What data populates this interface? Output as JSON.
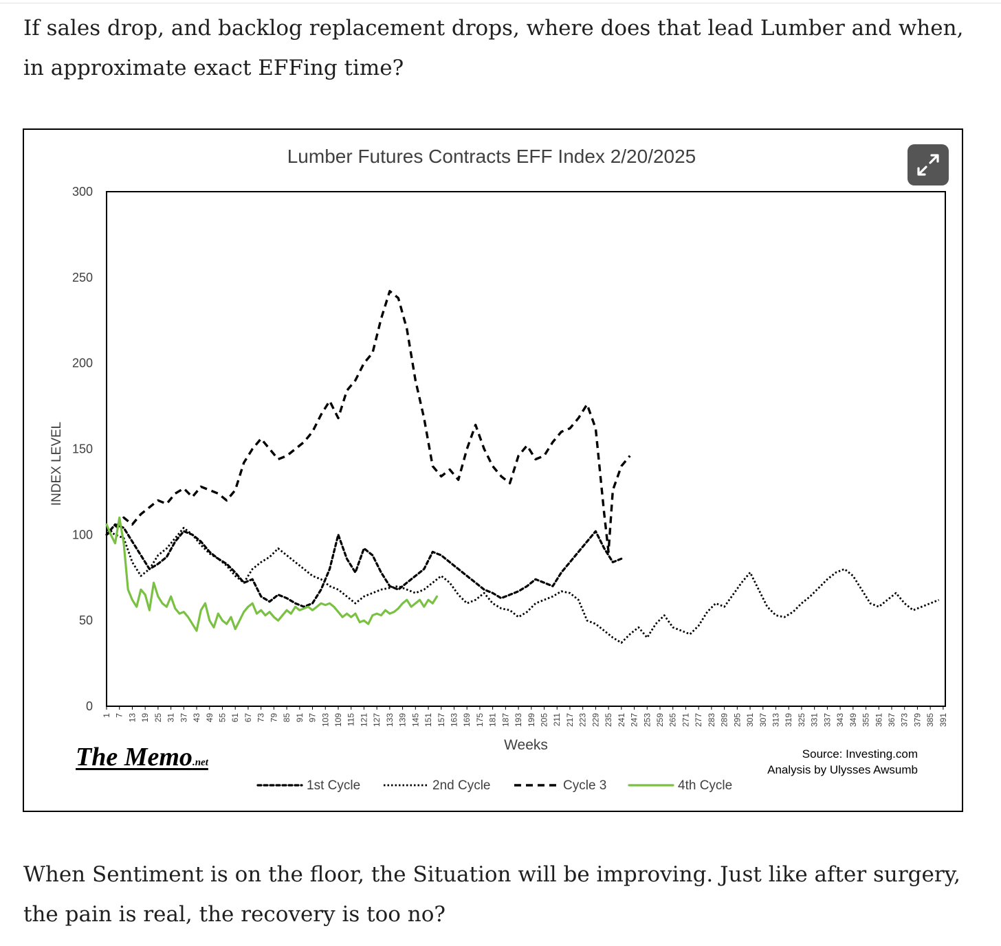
{
  "article": {
    "paragraph1": "If sales drop, and backlog replacement drops, where does that lead Lumber and when, in approximate exact EFFing time?",
    "paragraph2": "When Sentiment is on the floor, the Situation will be improving. Just like after surgery, the pain is real, the recovery is too no?"
  },
  "figure": {
    "logo_main": "The Memo",
    "logo_suffix": ".net",
    "source_line1": "Source: Investing.com",
    "source_line2": "Analysis by Ulysses Awsumb",
    "expand_icon": "expand-arrows-icon"
  },
  "chart_data": {
    "type": "line",
    "title": "Lumber Futures Contracts  EFF Index 2/20/2025",
    "xlabel": "Weeks",
    "ylabel": "INDEX LEVEL",
    "ylim": [
      0,
      300
    ],
    "yticks": [
      0,
      50,
      100,
      150,
      200,
      250,
      300
    ],
    "xlim": [
      1,
      392
    ],
    "xtick_start": 1,
    "xtick_step": 6,
    "xtick_end": 391,
    "grid": false,
    "legend_position": "bottom",
    "series": [
      {
        "name": "1st Cycle",
        "style": "dash-dot-small",
        "color": "#000000",
        "points": [
          [
            1,
            100
          ],
          [
            5,
            106
          ],
          [
            9,
            104
          ],
          [
            13,
            96
          ],
          [
            17,
            88
          ],
          [
            21,
            80
          ],
          [
            25,
            83
          ],
          [
            29,
            87
          ],
          [
            33,
            96
          ],
          [
            37,
            102
          ],
          [
            41,
            100
          ],
          [
            45,
            96
          ],
          [
            49,
            90
          ],
          [
            53,
            86
          ],
          [
            57,
            83
          ],
          [
            61,
            78
          ],
          [
            65,
            72
          ],
          [
            69,
            74
          ],
          [
            73,
            64
          ],
          [
            77,
            61
          ],
          [
            81,
            65
          ],
          [
            85,
            63
          ],
          [
            89,
            60
          ],
          [
            93,
            58
          ],
          [
            97,
            60
          ],
          [
            101,
            68
          ],
          [
            105,
            80
          ],
          [
            109,
            100
          ],
          [
            113,
            86
          ],
          [
            117,
            78
          ],
          [
            121,
            92
          ],
          [
            125,
            88
          ],
          [
            129,
            78
          ],
          [
            133,
            70
          ],
          [
            137,
            68
          ],
          [
            141,
            72
          ],
          [
            145,
            76
          ],
          [
            149,
            80
          ],
          [
            153,
            90
          ],
          [
            157,
            88
          ],
          [
            161,
            84
          ],
          [
            165,
            80
          ],
          [
            169,
            76
          ],
          [
            173,
            72
          ],
          [
            177,
            68
          ],
          [
            181,
            66
          ],
          [
            185,
            63
          ],
          [
            189,
            65
          ],
          [
            193,
            67
          ],
          [
            197,
            70
          ],
          [
            201,
            74
          ],
          [
            205,
            72
          ],
          [
            209,
            70
          ],
          [
            213,
            78
          ],
          [
            217,
            84
          ],
          [
            221,
            90
          ],
          [
            225,
            96
          ],
          [
            229,
            102
          ],
          [
            233,
            92
          ],
          [
            237,
            84
          ],
          [
            241,
            86
          ]
        ]
      },
      {
        "name": "2nd Cycle",
        "style": "dotted",
        "color": "#000000",
        "points": [
          [
            1,
            103
          ],
          [
            5,
            100
          ],
          [
            9,
            98
          ],
          [
            13,
            84
          ],
          [
            17,
            76
          ],
          [
            21,
            80
          ],
          [
            25,
            88
          ],
          [
            29,
            92
          ],
          [
            33,
            98
          ],
          [
            37,
            104
          ],
          [
            41,
            100
          ],
          [
            45,
            94
          ],
          [
            49,
            89
          ],
          [
            53,
            86
          ],
          [
            57,
            82
          ],
          [
            61,
            76
          ],
          [
            65,
            72
          ],
          [
            69,
            80
          ],
          [
            73,
            84
          ],
          [
            77,
            87
          ],
          [
            81,
            92
          ],
          [
            85,
            88
          ],
          [
            89,
            84
          ],
          [
            93,
            80
          ],
          [
            97,
            76
          ],
          [
            101,
            74
          ],
          [
            105,
            70
          ],
          [
            109,
            68
          ],
          [
            113,
            64
          ],
          [
            117,
            60
          ],
          [
            121,
            64
          ],
          [
            125,
            66
          ],
          [
            129,
            68
          ],
          [
            133,
            69
          ],
          [
            137,
            70
          ],
          [
            141,
            68
          ],
          [
            145,
            66
          ],
          [
            149,
            68
          ],
          [
            153,
            72
          ],
          [
            157,
            76
          ],
          [
            161,
            72
          ],
          [
            165,
            65
          ],
          [
            169,
            60
          ],
          [
            173,
            62
          ],
          [
            177,
            66
          ],
          [
            181,
            60
          ],
          [
            185,
            57
          ],
          [
            189,
            56
          ],
          [
            193,
            52
          ],
          [
            197,
            55
          ],
          [
            201,
            60
          ],
          [
            205,
            62
          ],
          [
            209,
            64
          ],
          [
            213,
            67
          ],
          [
            217,
            66
          ],
          [
            221,
            62
          ],
          [
            225,
            50
          ],
          [
            229,
            48
          ],
          [
            233,
            44
          ],
          [
            237,
            40
          ],
          [
            241,
            37
          ],
          [
            245,
            42
          ],
          [
            249,
            46
          ],
          [
            253,
            40
          ],
          [
            257,
            48
          ],
          [
            261,
            53
          ],
          [
            265,
            46
          ],
          [
            269,
            44
          ],
          [
            273,
            42
          ],
          [
            277,
            47
          ],
          [
            281,
            55
          ],
          [
            285,
            60
          ],
          [
            289,
            58
          ],
          [
            293,
            65
          ],
          [
            297,
            72
          ],
          [
            301,
            78
          ],
          [
            305,
            68
          ],
          [
            309,
            58
          ],
          [
            313,
            53
          ],
          [
            317,
            52
          ],
          [
            321,
            55
          ],
          [
            325,
            60
          ],
          [
            329,
            64
          ],
          [
            333,
            69
          ],
          [
            337,
            74
          ],
          [
            341,
            78
          ],
          [
            345,
            80
          ],
          [
            349,
            76
          ],
          [
            353,
            68
          ],
          [
            357,
            60
          ],
          [
            361,
            58
          ],
          [
            365,
            62
          ],
          [
            369,
            66
          ],
          [
            373,
            60
          ],
          [
            377,
            56
          ],
          [
            381,
            58
          ],
          [
            385,
            60
          ],
          [
            389,
            62
          ]
        ]
      },
      {
        "name": "Cycle 3",
        "style": "dashed",
        "color": "#000000",
        "points": [
          [
            1,
            100
          ],
          [
            5,
            104
          ],
          [
            9,
            110
          ],
          [
            13,
            106
          ],
          [
            17,
            112
          ],
          [
            21,
            116
          ],
          [
            25,
            120
          ],
          [
            29,
            118
          ],
          [
            33,
            124
          ],
          [
            37,
            127
          ],
          [
            41,
            122
          ],
          [
            45,
            128
          ],
          [
            49,
            126
          ],
          [
            53,
            124
          ],
          [
            57,
            120
          ],
          [
            61,
            126
          ],
          [
            65,
            142
          ],
          [
            69,
            150
          ],
          [
            73,
            156
          ],
          [
            77,
            150
          ],
          [
            81,
            144
          ],
          [
            85,
            146
          ],
          [
            89,
            150
          ],
          [
            93,
            154
          ],
          [
            97,
            160
          ],
          [
            101,
            170
          ],
          [
            105,
            178
          ],
          [
            109,
            168
          ],
          [
            113,
            184
          ],
          [
            117,
            190
          ],
          [
            121,
            200
          ],
          [
            125,
            206
          ],
          [
            129,
            226
          ],
          [
            133,
            242
          ],
          [
            137,
            238
          ],
          [
            141,
            220
          ],
          [
            145,
            190
          ],
          [
            149,
            168
          ],
          [
            153,
            140
          ],
          [
            157,
            134
          ],
          [
            161,
            138
          ],
          [
            165,
            132
          ],
          [
            169,
            150
          ],
          [
            173,
            164
          ],
          [
            177,
            150
          ],
          [
            181,
            140
          ],
          [
            185,
            134
          ],
          [
            189,
            130
          ],
          [
            193,
            146
          ],
          [
            197,
            152
          ],
          [
            201,
            144
          ],
          [
            205,
            146
          ],
          [
            209,
            154
          ],
          [
            213,
            160
          ],
          [
            217,
            162
          ],
          [
            221,
            168
          ],
          [
            225,
            176
          ],
          [
            229,
            162
          ],
          [
            233,
            112
          ],
          [
            235,
            90
          ],
          [
            237,
            126
          ],
          [
            241,
            140
          ],
          [
            245,
            146
          ]
        ]
      },
      {
        "name": "4th Cycle",
        "style": "solid",
        "color": "#7ac143",
        "points": [
          [
            1,
            106
          ],
          [
            3,
            100
          ],
          [
            5,
            95
          ],
          [
            7,
            110
          ],
          [
            9,
            95
          ],
          [
            11,
            68
          ],
          [
            13,
            62
          ],
          [
            15,
            58
          ],
          [
            17,
            68
          ],
          [
            19,
            65
          ],
          [
            21,
            56
          ],
          [
            23,
            72
          ],
          [
            25,
            64
          ],
          [
            27,
            60
          ],
          [
            29,
            58
          ],
          [
            31,
            64
          ],
          [
            33,
            57
          ],
          [
            35,
            54
          ],
          [
            37,
            55
          ],
          [
            39,
            52
          ],
          [
            41,
            48
          ],
          [
            43,
            44
          ],
          [
            45,
            56
          ],
          [
            47,
            60
          ],
          [
            49,
            50
          ],
          [
            51,
            46
          ],
          [
            53,
            54
          ],
          [
            55,
            50
          ],
          [
            57,
            48
          ],
          [
            59,
            52
          ],
          [
            61,
            45
          ],
          [
            63,
            50
          ],
          [
            65,
            55
          ],
          [
            67,
            58
          ],
          [
            69,
            60
          ],
          [
            71,
            54
          ],
          [
            73,
            56
          ],
          [
            75,
            53
          ],
          [
            77,
            55
          ],
          [
            79,
            52
          ],
          [
            81,
            50
          ],
          [
            83,
            53
          ],
          [
            85,
            56
          ],
          [
            87,
            54
          ],
          [
            89,
            58
          ],
          [
            91,
            56
          ],
          [
            93,
            57
          ],
          [
            95,
            58
          ],
          [
            97,
            56
          ],
          [
            99,
            58
          ],
          [
            101,
            60
          ],
          [
            103,
            59
          ],
          [
            105,
            60
          ],
          [
            107,
            58
          ],
          [
            109,
            55
          ],
          [
            111,
            52
          ],
          [
            113,
            54
          ],
          [
            115,
            52
          ],
          [
            117,
            54
          ],
          [
            119,
            49
          ],
          [
            121,
            50
          ],
          [
            123,
            48
          ],
          [
            125,
            53
          ],
          [
            127,
            54
          ],
          [
            129,
            53
          ],
          [
            131,
            56
          ],
          [
            133,
            54
          ],
          [
            135,
            55
          ],
          [
            137,
            57
          ],
          [
            139,
            60
          ],
          [
            141,
            62
          ],
          [
            143,
            58
          ],
          [
            145,
            60
          ],
          [
            147,
            62
          ],
          [
            149,
            58
          ],
          [
            151,
            62
          ],
          [
            153,
            60
          ],
          [
            155,
            64
          ]
        ]
      }
    ]
  }
}
